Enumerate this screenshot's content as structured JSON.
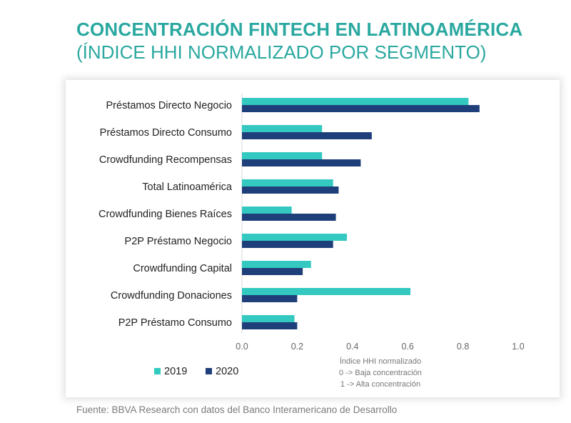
{
  "header": {
    "title": "CONCENTRACIÓN FINTECH EN LATINOAMÉRICA",
    "subtitle": "(ÍNDICE HHI NORMALIZADO POR SEGMENTO)"
  },
  "footer": {
    "source": "Fuente: BBVA Research con datos del Banco Interamericano de Desarrollo"
  },
  "chart_data": {
    "type": "bar",
    "orientation": "horizontal",
    "categories": [
      "Préstamos Directo Negocio",
      "Préstamos Directo Consumo",
      "Crowdfunding Recompensas",
      "Total Latinoamérica",
      "Crowdfunding Bienes Raíces",
      "P2P Préstamo Negocio",
      "Crowdfunding Capital",
      "Crowdfunding Donaciones",
      "P2P Préstamo Consumo"
    ],
    "series": [
      {
        "name": "2019",
        "color": "#33c9c0",
        "values": [
          0.82,
          0.29,
          0.29,
          0.33,
          0.18,
          0.38,
          0.25,
          0.61,
          0.19
        ]
      },
      {
        "name": "2020",
        "color": "#1f3f7a",
        "values": [
          0.86,
          0.47,
          0.43,
          0.35,
          0.34,
          0.33,
          0.22,
          0.2,
          0.2
        ]
      }
    ],
    "xlim": [
      0,
      1.0
    ],
    "xticks": [
      "0.0",
      "0.2",
      "0.4",
      "0.6",
      "0.8",
      "1.0"
    ],
    "xlabel_lines": [
      "Índice HHI normalizado",
      "0 -> Baja concentración",
      "1 -> Alta concentración"
    ],
    "legend_position": "bottom-left",
    "grid": false
  }
}
